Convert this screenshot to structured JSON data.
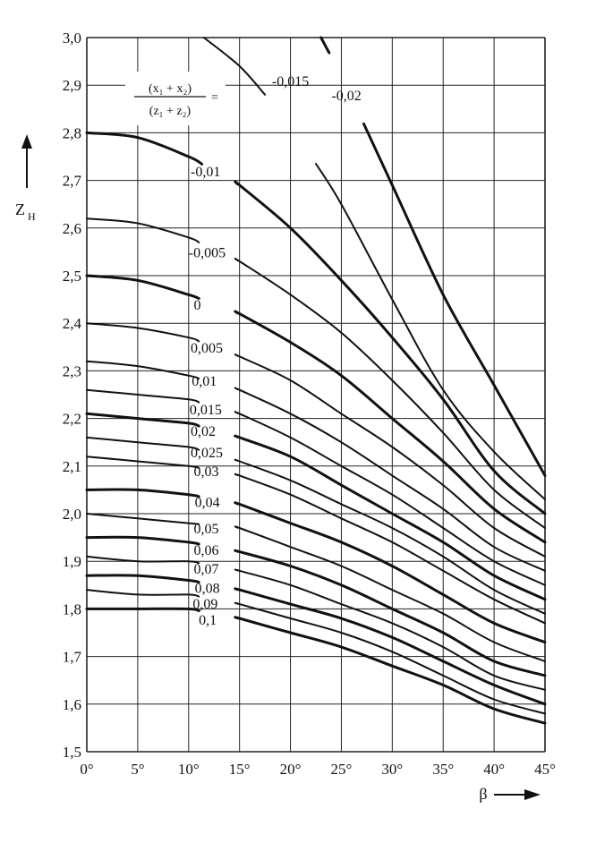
{
  "chart_data": {
    "type": "line",
    "ylabel_main": "Z",
    "ylabel_sub": "H",
    "xlabel": "β",
    "xlim": [
      0,
      45
    ],
    "ylim": [
      1.5,
      3.0
    ],
    "grid": true,
    "xticks": [
      0,
      5,
      10,
      15,
      20,
      25,
      30,
      35,
      40,
      45
    ],
    "xtick_labels": [
      "0°",
      "5°",
      "10°",
      "15°",
      "20°",
      "25°",
      "30°",
      "35°",
      "40°",
      "45°"
    ],
    "yticks": [
      1.5,
      1.6,
      1.7,
      1.8,
      1.9,
      2.0,
      2.1,
      2.2,
      2.3,
      2.4,
      2.5,
      2.6,
      2.7,
      2.8,
      2.9,
      3.0
    ],
    "ytick_labels": [
      "1,5",
      "1,6",
      "1,7",
      "1,8",
      "1,9",
      "2,0",
      "2,1",
      "2,2",
      "2,3",
      "2,4",
      "2,5",
      "2,6",
      "2,7",
      "2,8",
      "2,9",
      "3,0"
    ],
    "legend_formula": {
      "numerator": "(x₁ + x₂)",
      "denominator": "(z₁ + z₂)",
      "equals": "="
    },
    "series": [
      {
        "name": "-0,02",
        "x": [
          23.0,
          25,
          30,
          35,
          40,
          45
        ],
        "y": [
          3.0,
          2.92,
          2.69,
          2.46,
          2.27,
          2.08
        ]
      },
      {
        "name": "-0,015",
        "x": [
          11.5,
          15,
          20,
          25,
          30,
          35,
          40,
          45
        ],
        "y": [
          3.0,
          2.94,
          2.82,
          2.65,
          2.45,
          2.26,
          2.13,
          2.03
        ]
      },
      {
        "name": "-0,01",
        "x": [
          0,
          5,
          10,
          15,
          20,
          25,
          30,
          35,
          40,
          45
        ],
        "y": [
          2.8,
          2.79,
          2.75,
          2.69,
          2.6,
          2.49,
          2.37,
          2.24,
          2.09,
          2.0
        ]
      },
      {
        "name": "-0,005",
        "x": [
          0,
          5,
          10,
          15,
          20,
          25,
          30,
          35,
          40,
          45
        ],
        "y": [
          2.62,
          2.61,
          2.58,
          2.53,
          2.46,
          2.38,
          2.28,
          2.17,
          2.05,
          1.97
        ]
      },
      {
        "name": "0",
        "x": [
          0,
          5,
          10,
          15,
          20,
          25,
          30,
          35,
          40,
          45
        ],
        "y": [
          2.5,
          2.49,
          2.46,
          2.42,
          2.36,
          2.29,
          2.2,
          2.11,
          2.01,
          1.94
        ]
      },
      {
        "name": "0,005",
        "x": [
          0,
          5,
          10,
          15,
          20,
          25,
          30,
          35,
          40,
          45
        ],
        "y": [
          2.4,
          2.39,
          2.37,
          2.33,
          2.28,
          2.21,
          2.14,
          2.06,
          1.97,
          1.91
        ]
      },
      {
        "name": "0,01",
        "x": [
          0,
          5,
          10,
          15,
          20,
          25,
          30,
          35,
          40,
          45
        ],
        "y": [
          2.32,
          2.31,
          2.29,
          2.26,
          2.21,
          2.15,
          2.08,
          2.01,
          1.93,
          1.88
        ]
      },
      {
        "name": "0,015",
        "x": [
          0,
          5,
          10,
          15,
          20,
          25,
          30,
          35,
          40,
          45
        ],
        "y": [
          2.26,
          2.25,
          2.24,
          2.21,
          2.16,
          2.1,
          2.04,
          1.97,
          1.9,
          1.85
        ]
      },
      {
        "name": "0,02",
        "x": [
          0,
          5,
          10,
          15,
          20,
          25,
          30,
          35,
          40,
          45
        ],
        "y": [
          2.21,
          2.2,
          2.19,
          2.16,
          2.12,
          2.06,
          2.0,
          1.94,
          1.87,
          1.82
        ]
      },
      {
        "name": "0,025",
        "x": [
          0,
          5,
          10,
          15,
          20,
          25,
          30,
          35,
          40,
          45
        ],
        "y": [
          2.16,
          2.15,
          2.14,
          2.11,
          2.07,
          2.02,
          1.97,
          1.91,
          1.84,
          1.79
        ]
      },
      {
        "name": "0,03",
        "x": [
          0,
          5,
          10,
          15,
          20,
          25,
          30,
          35,
          40,
          45
        ],
        "y": [
          2.12,
          2.11,
          2.1,
          2.08,
          2.04,
          1.99,
          1.94,
          1.88,
          1.82,
          1.77
        ]
      },
      {
        "name": "0,04",
        "x": [
          0,
          5,
          10,
          15,
          20,
          25,
          30,
          35,
          40,
          45
        ],
        "y": [
          2.05,
          2.05,
          2.04,
          2.02,
          1.98,
          1.94,
          1.89,
          1.83,
          1.77,
          1.73
        ]
      },
      {
        "name": "0,05",
        "x": [
          0,
          5,
          10,
          15,
          20,
          25,
          30,
          35,
          40,
          45
        ],
        "y": [
          2.0,
          1.99,
          1.98,
          1.97,
          1.93,
          1.89,
          1.84,
          1.79,
          1.73,
          1.69
        ]
      },
      {
        "name": "0,06",
        "x": [
          0,
          5,
          10,
          15,
          20,
          25,
          30,
          35,
          40,
          45
        ],
        "y": [
          1.95,
          1.95,
          1.94,
          1.92,
          1.89,
          1.85,
          1.8,
          1.75,
          1.69,
          1.66
        ]
      },
      {
        "name": "0,07",
        "x": [
          0,
          5,
          10,
          15,
          20,
          25,
          30,
          35,
          40,
          45
        ],
        "y": [
          1.91,
          1.9,
          1.9,
          1.88,
          1.85,
          1.81,
          1.77,
          1.72,
          1.66,
          1.63
        ]
      },
      {
        "name": "0,08",
        "x": [
          0,
          5,
          10,
          15,
          20,
          25,
          30,
          35,
          40,
          45
        ],
        "y": [
          1.87,
          1.87,
          1.86,
          1.84,
          1.81,
          1.78,
          1.74,
          1.69,
          1.64,
          1.6
        ]
      },
      {
        "name": "0,09",
        "x": [
          0,
          5,
          10,
          15,
          20,
          25,
          30,
          35,
          40,
          45
        ],
        "y": [
          1.84,
          1.83,
          1.83,
          1.81,
          1.78,
          1.75,
          1.71,
          1.66,
          1.61,
          1.58
        ]
      },
      {
        "name": "0,1",
        "x": [
          0,
          5,
          10,
          15,
          20,
          25,
          30,
          35,
          40,
          45
        ],
        "y": [
          1.8,
          1.8,
          1.8,
          1.78,
          1.75,
          1.72,
          1.68,
          1.64,
          1.59,
          1.56
        ]
      }
    ]
  }
}
